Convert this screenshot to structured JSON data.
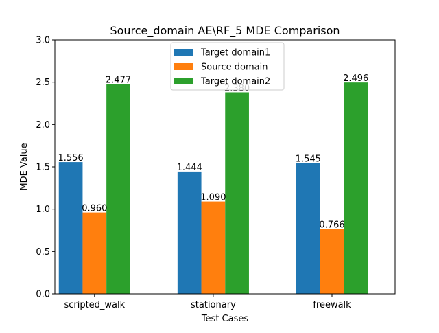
{
  "chart_data": {
    "type": "bar",
    "title": "Source_domain AE\\RF_5 MDE Comparison",
    "xlabel": "Test Cases",
    "ylabel": "MDE Value",
    "ylim": [
      0,
      3.0
    ],
    "yticks": [
      "0.0",
      "0.5",
      "1.0",
      "1.5",
      "2.0",
      "2.5",
      "3.0"
    ],
    "categories": [
      "scripted_walk",
      "stationary",
      "freewalk"
    ],
    "series": [
      {
        "name": "Target domain1",
        "color": "#1f77b4",
        "values": [
          1.556,
          1.444,
          1.545
        ],
        "labels": [
          "1.556",
          "1.444",
          "1.545"
        ]
      },
      {
        "name": "Source domain",
        "color": "#ff7f0e",
        "values": [
          0.96,
          1.09,
          0.766
        ],
        "labels": [
          "0.960",
          "1.090",
          "0.766"
        ]
      },
      {
        "name": "Target domain2",
        "color": "#2ca02c",
        "values": [
          2.477,
          2.38,
          2.496
        ],
        "labels": [
          "2.477",
          "2.380",
          "2.496"
        ]
      }
    ],
    "legend_position": "top-center",
    "grid": false
  }
}
